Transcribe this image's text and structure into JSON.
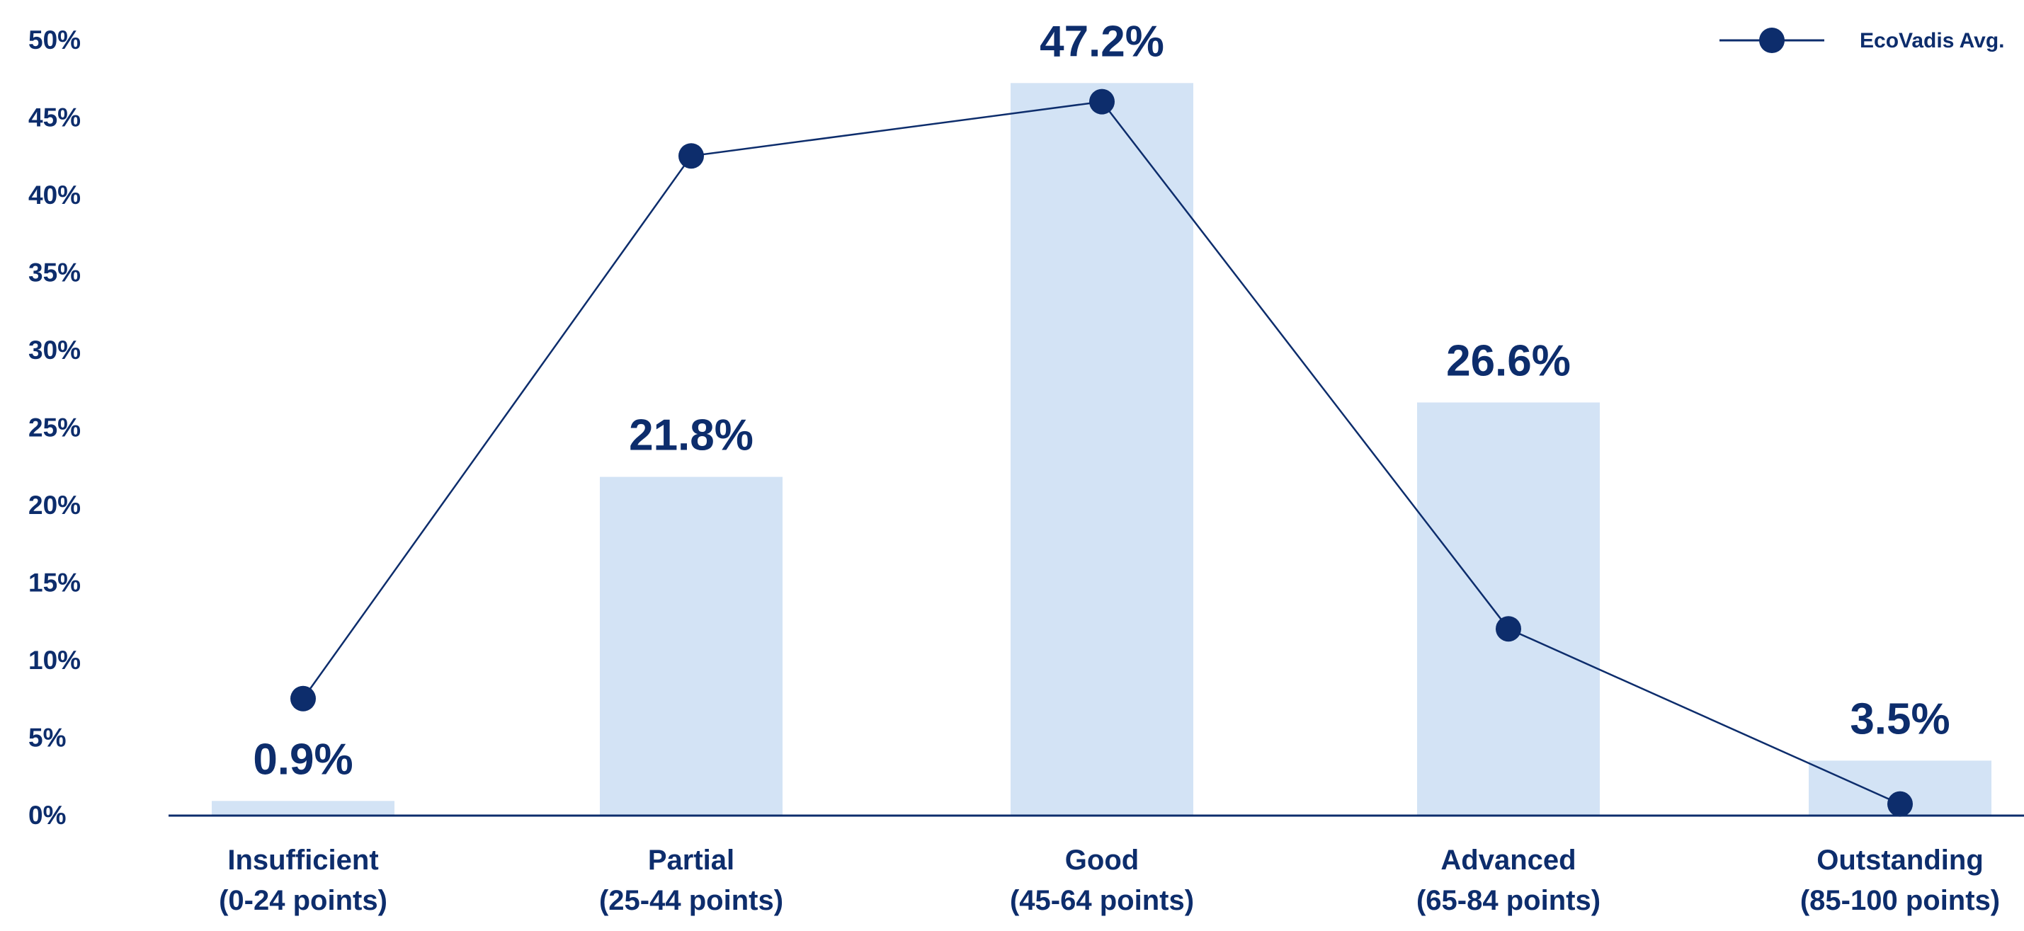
{
  "chart_data": {
    "type": "bar",
    "title": "",
    "xlabel": "",
    "ylabel": "",
    "ylim": [
      0,
      50
    ],
    "yticks": [
      "0%",
      "5%",
      "10%",
      "15%",
      "20%",
      "25%",
      "30%",
      "35%",
      "40%",
      "45%",
      "50%"
    ],
    "categories": [
      [
        "Insufficient",
        "(0-24 points)"
      ],
      [
        "Partial",
        "(25-44 points)"
      ],
      [
        "Good",
        "(45-64 points)"
      ],
      [
        "Advanced",
        "(65-84 points)"
      ],
      [
        "Outstanding",
        "(85-100 points)"
      ]
    ],
    "bars": {
      "values": [
        0.9,
        21.8,
        47.2,
        26.6,
        3.5
      ],
      "labels": [
        "0.9%",
        "21.8%",
        "47.2%",
        "26.6%",
        "3.5%"
      ],
      "color": "#d3e3f5"
    },
    "line_series": {
      "name": "EcoVadis Avg.",
      "values": [
        7.5,
        42.5,
        46,
        12,
        0.7
      ],
      "color": "#0d2d6c"
    },
    "legend_position": "top-right",
    "grid": false
  }
}
